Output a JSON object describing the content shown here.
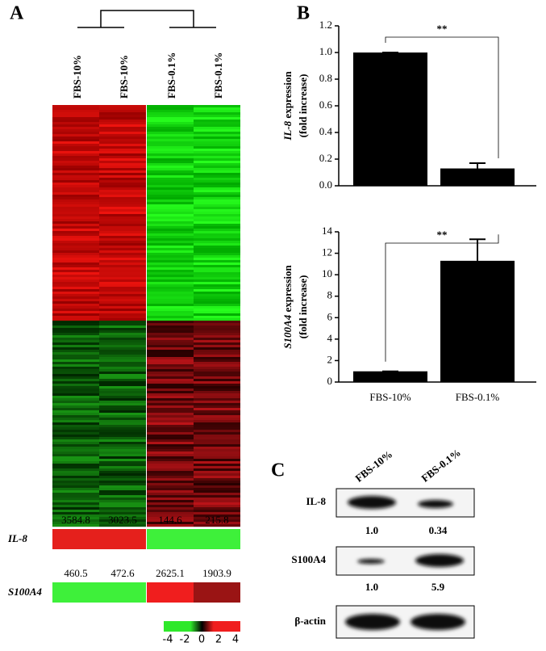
{
  "panel_labels": [
    "A",
    "B",
    "C"
  ],
  "heatmap": {
    "columns": [
      "FBS-10%",
      "FBS-10%",
      "FBS-0.1%",
      "FBS-0.1%"
    ],
    "genes": [
      {
        "name": "IL-8",
        "values": [
          3584.8,
          3023.5,
          144.6,
          215.8
        ],
        "colors": [
          "#e5201c",
          "#e5201c",
          "#3ef03a",
          "#3ef03a"
        ]
      },
      {
        "name": "S100A4",
        "values": [
          460.5,
          472.6,
          2625.1,
          1903.9
        ],
        "colors": [
          "#3ef03a",
          "#3ef03a",
          "#f01e1e",
          "#9a1414"
        ]
      }
    ],
    "colorbar_ticks": [
      -4,
      -2,
      0,
      2,
      4
    ]
  },
  "chart_data": [
    {
      "type": "bar",
      "ylabel": {
        "gene": "IL-8",
        "text": "expression",
        "unit": "(fold increase)"
      },
      "categories": [
        "FBS-10%",
        "FBS-0.1%"
      ],
      "values": [
        1.0,
        0.13
      ],
      "errors": [
        0,
        0.04
      ],
      "color": "#000000",
      "ylim": [
        0,
        1.2
      ],
      "yticks": [
        {
          "value": 0,
          "label": "0.0"
        },
        0.2,
        0.4,
        0.6,
        0.8,
        {
          "value": 1,
          "label": "1.0"
        },
        1.2
      ],
      "significance": "**"
    },
    {
      "type": "bar",
      "ylabel": {
        "gene": "S100A4",
        "text": "expression",
        "unit": "(fold increase)"
      },
      "categories": [
        "FBS-10%",
        "FBS-0.1%"
      ],
      "values": [
        1.0,
        11.3
      ],
      "errors": [
        0,
        2.0
      ],
      "color": "#000000",
      "ylim": [
        0,
        14
      ],
      "yticks": [
        0,
        2,
        4,
        6,
        8,
        10,
        12,
        14
      ],
      "significance": "**"
    }
  ],
  "blot": {
    "columns": [
      "FBS-10%",
      "FBS-0.1%"
    ],
    "rows": [
      {
        "label": "IL-8",
        "quantities": [
          "1.0",
          "0.34"
        ]
      },
      {
        "label": "S100A4",
        "quantities": [
          "1.0",
          "5.9"
        ]
      },
      {
        "label": "β-actin"
      }
    ]
  }
}
